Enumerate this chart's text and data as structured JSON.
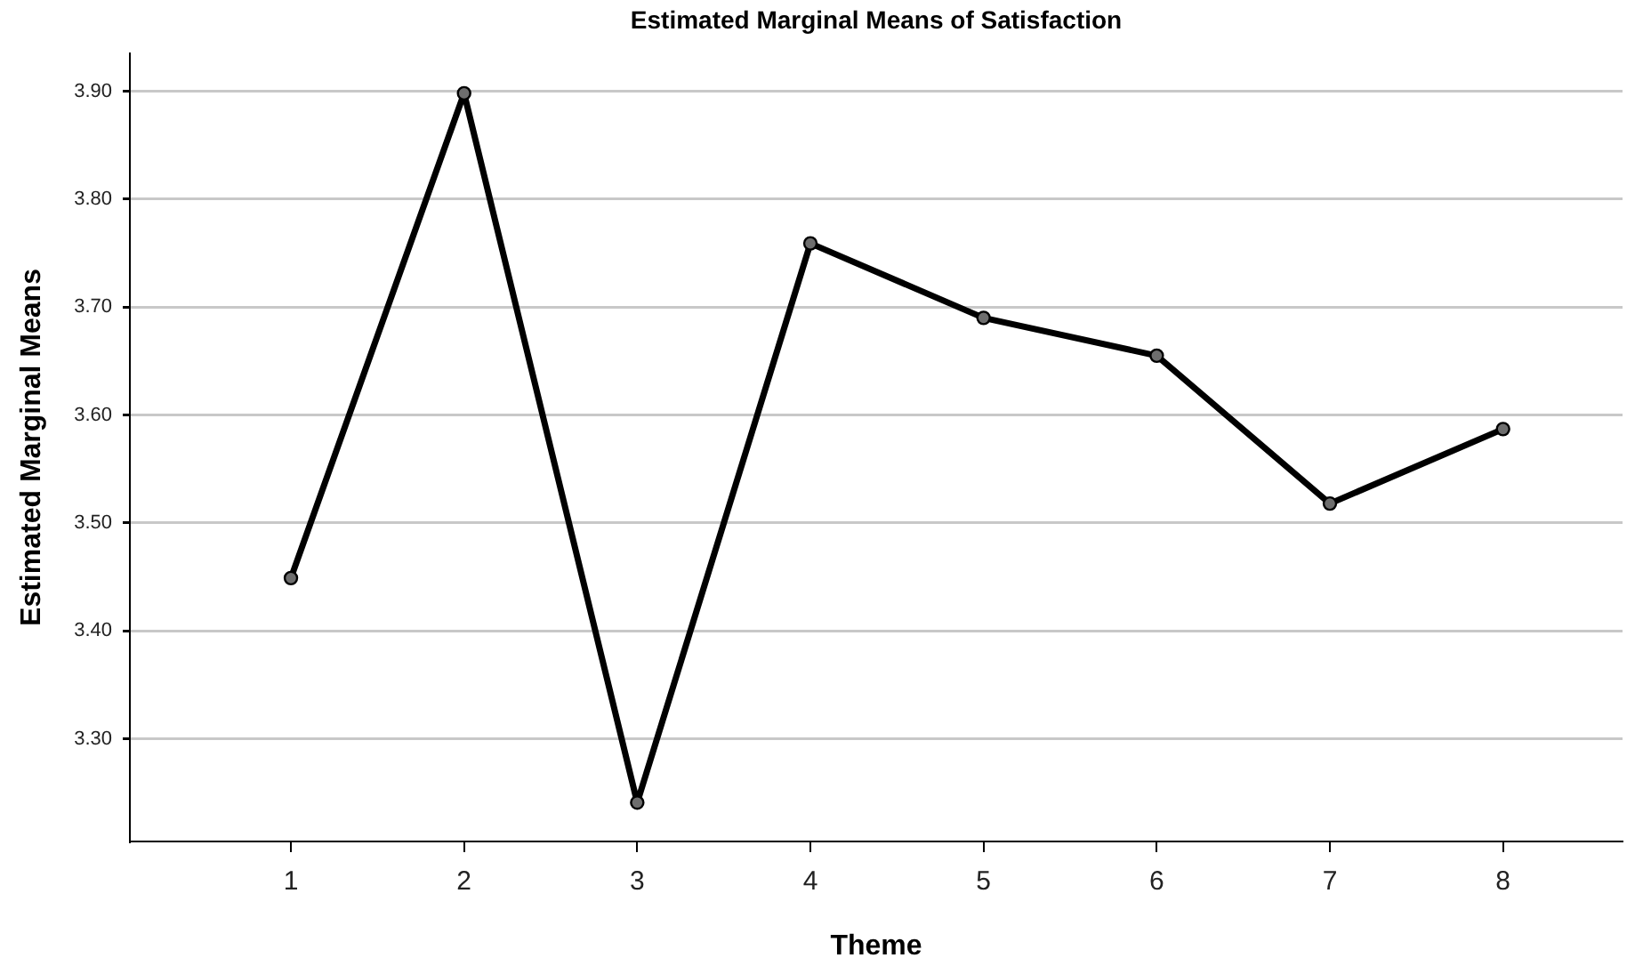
{
  "chart_data": {
    "type": "line",
    "title": "Estimated Marginal Means of Satisfaction",
    "xlabel": "Theme",
    "ylabel": "Estimated Marginal Means",
    "x": [
      1,
      2,
      3,
      4,
      5,
      6,
      7,
      8
    ],
    "series": [
      {
        "color": "#000000",
        "values": [
          3.449,
          3.898,
          3.241,
          3.759,
          3.69,
          3.655,
          3.518,
          3.587
        ]
      }
    ],
    "xlim": [
      0.07,
      8.69
    ],
    "xticks": [
      1,
      2,
      3,
      4,
      5,
      6,
      7,
      8
    ],
    "ylim": [
      3.205,
      3.935
    ],
    "yticks": [
      {
        "value": 3.3,
        "label": "3.30"
      },
      {
        "value": 3.4,
        "label": "3.40"
      },
      {
        "value": 3.5,
        "label": "3.50"
      },
      {
        "value": 3.6,
        "label": "3.60"
      },
      {
        "value": 3.7,
        "label": "3.70"
      },
      {
        "value": 3.8,
        "label": "3.80"
      },
      {
        "value": 3.9,
        "label": "3.90"
      }
    ],
    "grid": "y",
    "legend": false,
    "marker": "circle",
    "line_style": "solid"
  }
}
